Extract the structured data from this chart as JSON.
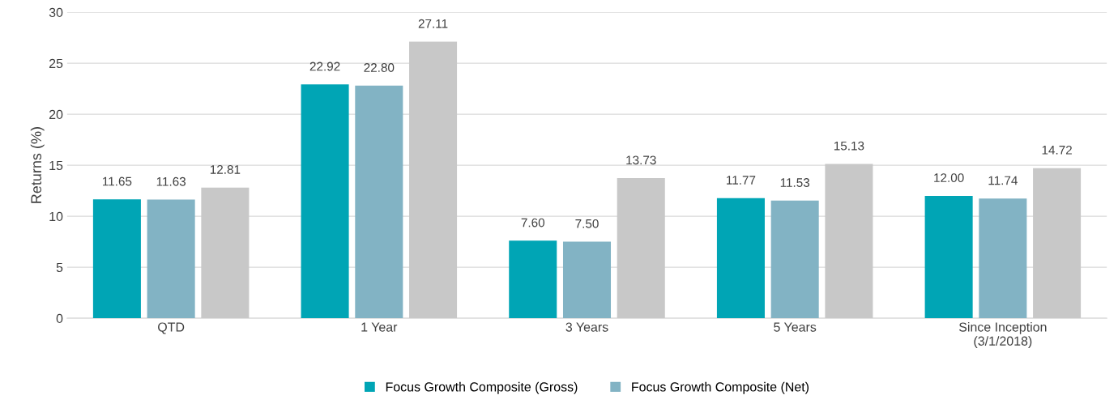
{
  "chart_data": {
    "type": "bar",
    "ylabel": "Returns (%)",
    "categories": [
      "QTD",
      "1 Year",
      "3 Years",
      "5 Years",
      "Since Inception\n(3/1/2018)"
    ],
    "series": [
      {
        "name": "Focus Growth Composite (Gross)",
        "color": "#00a5b5",
        "values": [
          11.65,
          22.92,
          7.6,
          11.77,
          12.0
        ],
        "value_labels": [
          "11.65",
          "22.92",
          "7.60",
          "11.77",
          "12.00"
        ]
      },
      {
        "name": "Focus Growth Composite (Net)",
        "color": "#82b3c4",
        "values": [
          11.63,
          22.8,
          7.5,
          11.53,
          11.74
        ],
        "value_labels": [
          "11.63",
          "22.80",
          "7.50",
          "11.53",
          "11.74"
        ]
      },
      {
        "color": "#c8c8c8",
        "values": [
          12.81,
          27.11,
          13.73,
          15.13,
          14.72
        ],
        "value_labels": [
          "12.81",
          "27.11",
          "13.73",
          "15.13",
          "14.72"
        ]
      }
    ],
    "ylim": [
      0,
      30
    ],
    "yticks": [
      0,
      5,
      10,
      15,
      20,
      25,
      30
    ],
    "grid": "y",
    "legend": "bottom"
  }
}
